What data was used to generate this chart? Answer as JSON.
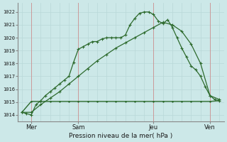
{
  "xlabel": "Pression niveau de la mer( hPa )",
  "background_color": "#cce8e8",
  "grid_color": "#aacccc",
  "line_color": "#2d6a2d",
  "ylim": [
    1013.5,
    1022.7
  ],
  "yticks": [
    1014,
    1015,
    1016,
    1017,
    1018,
    1019,
    1020,
    1021,
    1022
  ],
  "day_labels": [
    "Mer",
    "Sam",
    "Jeu",
    "Ven"
  ],
  "day_positions": [
    12,
    72,
    168,
    240
  ],
  "vline_x": [
    12,
    72,
    168,
    240
  ],
  "series1_x": [
    0,
    6,
    12,
    18,
    24,
    30,
    36,
    42,
    48,
    54,
    60,
    66,
    72,
    78,
    84,
    90,
    96,
    102,
    108,
    114,
    120,
    126,
    132,
    138,
    144,
    150,
    156,
    162,
    168,
    174,
    180,
    186,
    192,
    198,
    204,
    210,
    216,
    222,
    228,
    234,
    240,
    246,
    252
  ],
  "series1_y": [
    1014.2,
    1014.1,
    1014.0,
    1014.8,
    1015.1,
    1015.5,
    1015.8,
    1016.1,
    1016.4,
    1016.7,
    1017.0,
    1018.1,
    1019.1,
    1019.3,
    1019.5,
    1019.7,
    1019.7,
    1019.9,
    1020.0,
    1020.0,
    1020.0,
    1020.0,
    1020.2,
    1021.0,
    1021.5,
    1021.9,
    1022.0,
    1022.0,
    1021.8,
    1021.3,
    1021.1,
    1021.4,
    1020.8,
    1020.0,
    1019.2,
    1018.5,
    1017.8,
    1017.5,
    1017.0,
    1016.2,
    1015.5,
    1015.2,
    1015.1
  ],
  "series2_x": [
    0,
    12,
    24,
    36,
    48,
    60,
    72,
    84,
    96,
    108,
    120,
    132,
    144,
    156,
    168,
    180,
    192,
    204,
    216,
    228,
    240,
    252
  ],
  "series2_y": [
    1014.2,
    1014.2,
    1014.8,
    1015.3,
    1015.8,
    1016.4,
    1017.0,
    1017.6,
    1018.2,
    1018.7,
    1019.2,
    1019.6,
    1020.0,
    1020.4,
    1020.8,
    1021.2,
    1021.0,
    1020.5,
    1019.5,
    1018.0,
    1015.5,
    1015.2
  ],
  "series3_x": [
    0,
    12,
    24,
    36,
    48,
    60,
    72,
    84,
    96,
    108,
    120,
    132,
    144,
    156,
    168,
    180,
    192,
    204,
    216,
    228,
    240,
    252
  ],
  "series3_y": [
    1014.2,
    1015.05,
    1015.05,
    1015.05,
    1015.05,
    1015.05,
    1015.05,
    1015.05,
    1015.05,
    1015.05,
    1015.05,
    1015.05,
    1015.05,
    1015.05,
    1015.05,
    1015.05,
    1015.05,
    1015.05,
    1015.05,
    1015.05,
    1015.05,
    1015.1
  ],
  "xlim": [
    -5,
    258
  ],
  "xgrid_step": 12
}
